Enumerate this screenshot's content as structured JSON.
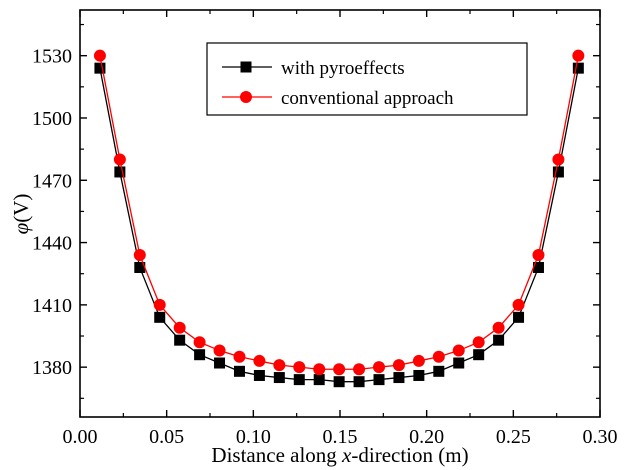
{
  "chart_data": {
    "type": "line",
    "title": "",
    "xlabel_pre": "Distance along ",
    "xlabel_var": "x",
    "xlabel_post": "-direction (m)",
    "ylabel_var": "φ",
    "ylabel_post": "(V)",
    "xlim": [
      0.0,
      0.3
    ],
    "ylim": [
      1356,
      1552
    ],
    "xticks": [
      0.0,
      0.05,
      0.1,
      0.15,
      0.2,
      0.25,
      0.3
    ],
    "xtick_labels": [
      "0.00",
      "0.05",
      "0.10",
      "0.15",
      "0.20",
      "0.25",
      "0.30"
    ],
    "yticks": [
      1380,
      1410,
      1440,
      1470,
      1500,
      1530
    ],
    "ytick_labels": [
      "1380",
      "1410",
      "1440",
      "1470",
      "1500",
      "1530"
    ],
    "legend_position": "top-center",
    "x": [
      0.0115,
      0.023,
      0.0345,
      0.046,
      0.0575,
      0.069,
      0.0805,
      0.092,
      0.1035,
      0.115,
      0.1265,
      0.138,
      0.1495,
      0.161,
      0.1725,
      0.184,
      0.1955,
      0.207,
      0.2185,
      0.23,
      0.2415,
      0.253,
      0.2645,
      0.276,
      0.2875
    ],
    "series": [
      {
        "name": "with pyroeffects",
        "marker": "square",
        "color": "#000000",
        "values": [
          1524,
          1474,
          1428,
          1404,
          1393,
          1386,
          1382,
          1378,
          1376,
          1375,
          1374,
          1374,
          1373,
          1373,
          1374,
          1375,
          1376,
          1378,
          1382,
          1386,
          1393,
          1404,
          1428,
          1474,
          1524
        ]
      },
      {
        "name": "conventional approach",
        "marker": "circle",
        "color": "#ff0000",
        "values": [
          1530,
          1480,
          1434,
          1410,
          1399,
          1392,
          1388,
          1385,
          1383,
          1381,
          1380,
          1379,
          1379,
          1379,
          1380,
          1381,
          1383,
          1385,
          1388,
          1392,
          1399,
          1410,
          1434,
          1480,
          1530
        ]
      }
    ]
  }
}
